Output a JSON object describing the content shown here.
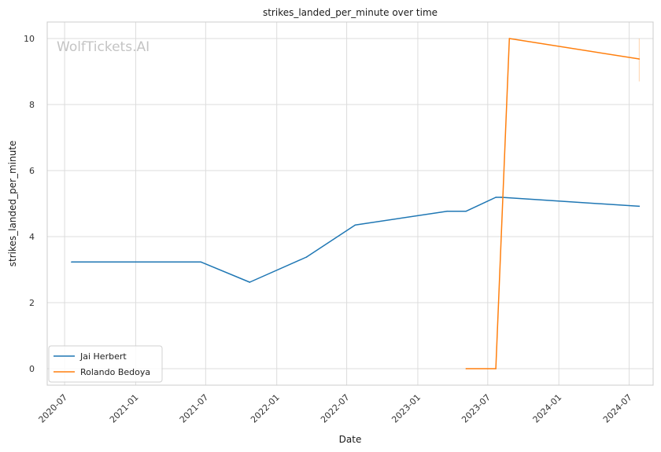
{
  "chart_data": {
    "type": "line",
    "title": "strikes_landed_per_minute over time",
    "xlabel": "Date",
    "ylabel": "strikes_landed_per_minute",
    "watermark": "WolfTickets.AI",
    "x_ticks": [
      "2020-07",
      "2021-01",
      "2021-07",
      "2022-01",
      "2022-07",
      "2023-01",
      "2023-07",
      "2024-01",
      "2024-07"
    ],
    "y_ticks": [
      0,
      2,
      4,
      6,
      8,
      10
    ],
    "xlim": [
      "2020-05-17",
      "2024-09-01"
    ],
    "ylim": [
      -0.5,
      10.5
    ],
    "grid": true,
    "legend_position": "lower-left",
    "series": [
      {
        "name": "Jai Herbert",
        "color": "#1f77b4",
        "points": [
          {
            "x": "2020-07-19",
            "y": 3.23
          },
          {
            "x": "2021-06-19",
            "y": 3.23
          },
          {
            "x": "2021-10-23",
            "y": 2.62
          },
          {
            "x": "2022-03-19",
            "y": 3.38
          },
          {
            "x": "2022-07-23",
            "y": 4.35
          },
          {
            "x": "2023-03-18",
            "y": 4.77
          },
          {
            "x": "2023-05-06",
            "y": 4.77
          },
          {
            "x": "2023-07-22",
            "y": 5.19
          },
          {
            "x": "2023-08-05",
            "y": 5.19
          },
          {
            "x": "2024-07-27",
            "y": 4.92
          }
        ]
      },
      {
        "name": "Rolando Bedoya",
        "color": "#ff7f0e",
        "points": [
          {
            "x": "2023-05-06",
            "y": 0.0
          },
          {
            "x": "2023-07-22",
            "y": 0.0
          },
          {
            "x": "2023-08-26",
            "y": 10.0
          },
          {
            "x": "2024-07-27",
            "y": 9.38
          }
        ]
      }
    ]
  }
}
